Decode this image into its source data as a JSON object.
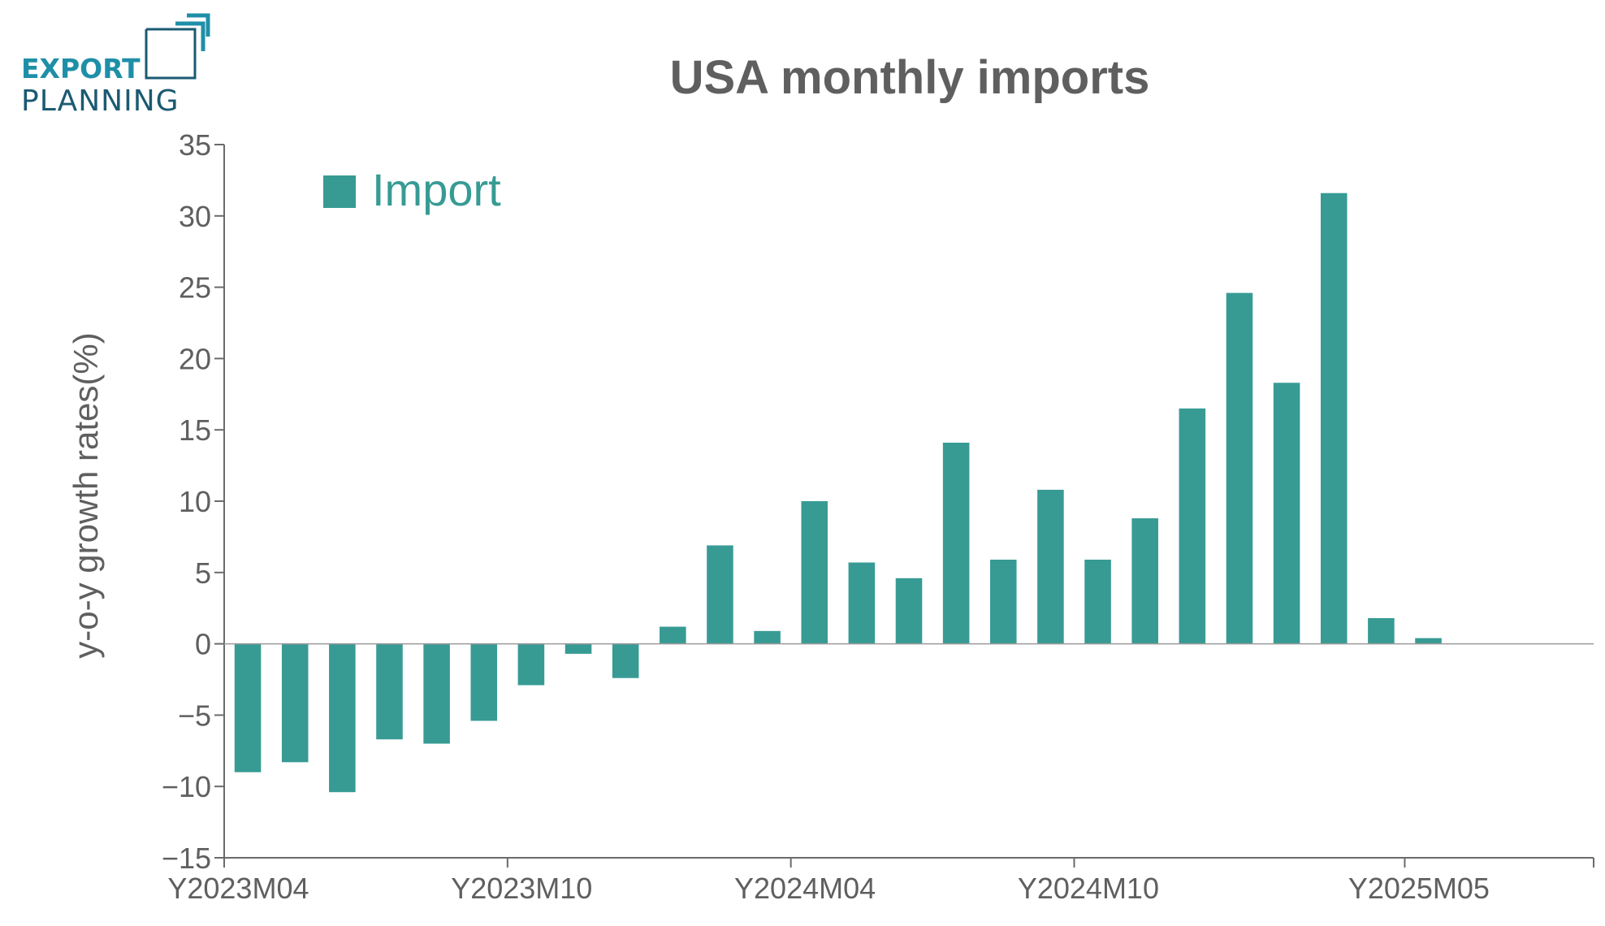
{
  "logo": {
    "line1": "EXPORT",
    "line2": "PLANNING",
    "color_primary": "#1f8fa8",
    "color_secondary": "#1b5a72"
  },
  "colors": {
    "bar": "#379b94",
    "text": "#5f5f5f",
    "axis": "#6b6b6b"
  },
  "chart_data": {
    "type": "bar",
    "title": "USA monthly imports",
    "ylabel": "y-o-y growth rates(%)",
    "xlabel": "",
    "ylim": [
      -15,
      35
    ],
    "yticks": [
      -15,
      -10,
      -5,
      0,
      5,
      10,
      15,
      20,
      25,
      30,
      35
    ],
    "ytick_labels": [
      "−15",
      "−10",
      "−5",
      "0",
      "5",
      "10",
      "15",
      "20",
      "25",
      "30",
      "35"
    ],
    "xtick_labels": [
      {
        "label": "Y2023M04",
        "index": 0
      },
      {
        "label": "Y2023M10",
        "index": 6
      },
      {
        "label": "Y2024M04",
        "index": 12
      },
      {
        "label": "Y2024M10",
        "index": 18
      },
      {
        "label": "Y2025M05",
        "index": 25
      }
    ],
    "legend": {
      "position": "top-left",
      "label": "Import"
    },
    "series": [
      {
        "name": "Import",
        "values": [
          -9.0,
          -8.3,
          -10.4,
          -6.7,
          -7.0,
          -5.4,
          -2.9,
          -0.7,
          -2.4,
          1.2,
          6.9,
          0.9,
          10.0,
          5.7,
          4.6,
          14.1,
          5.9,
          10.8,
          5.9,
          8.8,
          16.5,
          24.6,
          18.3,
          31.6,
          1.8,
          0.4,
          0,
          0,
          0
        ]
      }
    ]
  }
}
